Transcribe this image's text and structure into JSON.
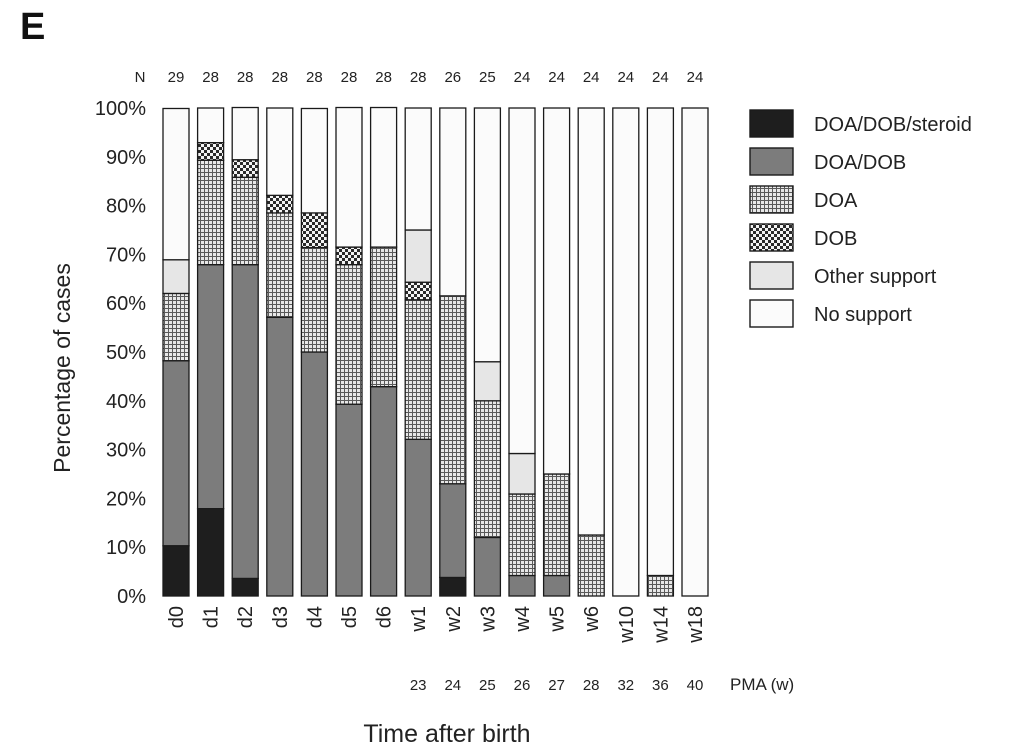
{
  "panel_label": "E",
  "chart_data": {
    "type": "bar",
    "stacked": true,
    "xlabel": "Time after birth",
    "ylabel": "Percentage of cases",
    "ylim": [
      0,
      100
    ],
    "yticks": [
      "0%",
      "10%",
      "20%",
      "30%",
      "40%",
      "50%",
      "60%",
      "70%",
      "80%",
      "90%",
      "100%"
    ],
    "categories": [
      "d0",
      "d1",
      "d2",
      "d3",
      "d4",
      "d5",
      "d6",
      "w1",
      "w2",
      "w3",
      "w4",
      "w5",
      "w6",
      "w10",
      "w14",
      "w18"
    ],
    "n_label": "N",
    "n_values": [
      "29",
      "28",
      "28",
      "28",
      "28",
      "28",
      "28",
      "28",
      "26",
      "25",
      "24",
      "24",
      "24",
      "24",
      "24",
      "24"
    ],
    "pma_label": "PMA (w)",
    "pma_values": [
      "",
      "",
      "",
      "",
      "",
      "",
      "",
      "23",
      "24",
      "25",
      "26",
      "27",
      "28",
      "32",
      "36",
      "40"
    ],
    "legend_position": "right",
    "series": [
      {
        "name": "DOA/DOB/steroid",
        "pattern": "solid-black",
        "values": [
          10.3,
          17.9,
          3.6,
          0,
          0,
          0,
          0,
          0,
          3.8,
          0,
          0,
          0,
          0,
          0,
          0,
          0
        ]
      },
      {
        "name": "DOA/DOB",
        "pattern": "solid-gray",
        "values": [
          37.9,
          50.0,
          64.3,
          57.1,
          50.0,
          39.3,
          42.9,
          32.1,
          19.2,
          12.0,
          4.2,
          4.2,
          0,
          0,
          0,
          0
        ]
      },
      {
        "name": "DOA",
        "pattern": "fine-grid",
        "values": [
          13.8,
          21.4,
          17.9,
          21.4,
          21.4,
          28.6,
          28.6,
          28.6,
          38.5,
          28.0,
          16.7,
          20.8,
          12.5,
          0,
          4.2,
          0
        ]
      },
      {
        "name": "DOB",
        "pattern": "checker",
        "values": [
          0,
          3.6,
          3.6,
          3.6,
          7.1,
          3.6,
          0,
          3.6,
          0,
          0,
          0,
          0,
          0,
          0,
          0,
          0
        ]
      },
      {
        "name": "Other support",
        "pattern": "light-gray",
        "values": [
          6.9,
          0,
          0,
          0,
          0,
          0,
          0,
          10.7,
          0,
          8.0,
          8.3,
          0,
          0,
          0,
          0,
          0
        ]
      },
      {
        "name": "No support",
        "pattern": "white",
        "values": [
          31.0,
          7.1,
          10.7,
          17.9,
          21.4,
          28.6,
          28.6,
          25.0,
          38.5,
          52.0,
          70.8,
          75.0,
          87.5,
          100,
          95.8,
          100
        ]
      }
    ]
  }
}
